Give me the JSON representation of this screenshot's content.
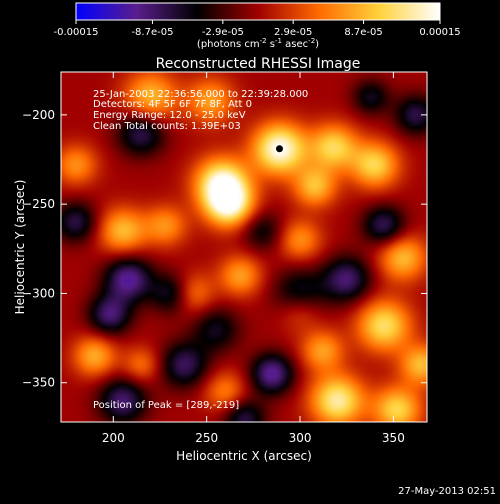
{
  "colorbar": {
    "tick_labels": [
      "-0.00015",
      "-8.7e-05",
      "-2.9e-05",
      "2.9e-05",
      "8.7e-05",
      "0.00015"
    ],
    "tick_values": [
      -0.00015,
      -8.7e-05,
      -2.9e-05,
      2.9e-05,
      8.7e-05,
      0.00015
    ],
    "units_prefix": "(photons cm",
    "units_exp1": "-2",
    "units_mid": " s",
    "units_exp2": "-1",
    "units_suffix": " asec",
    "units_exp3": "-2",
    "units_close": ")",
    "colormap": [
      "#0000ff",
      "#5a1e8c",
      "#000000",
      "#a00000",
      "#ff6a00",
      "#ffd23c",
      "#ffffff"
    ]
  },
  "chart_data": {
    "type": "heatmap",
    "title": "Reconstructed RHESSI Image",
    "xlabel": "Heliocentric X (arcsec)",
    "ylabel": "Heliocentric Y (arcsec)",
    "xlim": [
      172,
      368
    ],
    "ylim": [
      -372,
      -176
    ],
    "xticks": [
      200,
      250,
      300,
      350
    ],
    "yticks": [
      -200,
      -250,
      -300,
      -350
    ],
    "xtick_labels": [
      "200",
      "250",
      "300",
      "350"
    ],
    "ytick_labels": [
      "−200",
      "−250",
      "−300",
      "−350"
    ],
    "peak": [
      289,
      -219
    ],
    "annotations": {
      "time_range": "25-Jan-2003 22:36:56.000 to 22:39:28.000",
      "detectors": "Detectors: 4F 5F 6F 7F 8F, Att 0",
      "energy": "Energy Range: 12.0 - 25.0 keV",
      "clean": "Clean    Total counts: 1.39E+03",
      "peak_text": "Position of Peak = [289,-219]"
    },
    "sources": [
      {
        "x": 289,
        "y": -219,
        "amp": 1.0,
        "w": 10
      },
      {
        "x": 258,
        "y": -238,
        "amp": 0.9,
        "w": 10
      },
      {
        "x": 262,
        "y": -250,
        "amp": 0.9,
        "w": 9
      },
      {
        "x": 318,
        "y": -218,
        "amp": 0.7,
        "w": 9
      },
      {
        "x": 308,
        "y": -240,
        "amp": 0.6,
        "w": 8
      },
      {
        "x": 340,
        "y": -228,
        "amp": 0.7,
        "w": 9
      },
      {
        "x": 220,
        "y": -190,
        "amp": 0.6,
        "w": 10
      },
      {
        "x": 252,
        "y": -192,
        "amp": 0.5,
        "w": 9
      },
      {
        "x": 180,
        "y": -228,
        "amp": 0.45,
        "w": 8
      },
      {
        "x": 205,
        "y": -265,
        "amp": 0.6,
        "w": 9
      },
      {
        "x": 228,
        "y": -262,
        "amp": 0.45,
        "w": 8
      },
      {
        "x": 268,
        "y": -290,
        "amp": 0.5,
        "w": 8
      },
      {
        "x": 242,
        "y": -300,
        "amp": 0.45,
        "w": 8
      },
      {
        "x": 300,
        "y": -270,
        "amp": 0.45,
        "w": 8
      },
      {
        "x": 355,
        "y": -280,
        "amp": 0.6,
        "w": 9
      },
      {
        "x": 345,
        "y": -318,
        "amp": 0.75,
        "w": 10
      },
      {
        "x": 312,
        "y": -332,
        "amp": 0.5,
        "w": 8
      },
      {
        "x": 365,
        "y": -340,
        "amp": 0.6,
        "w": 8
      },
      {
        "x": 320,
        "y": -360,
        "amp": 0.85,
        "w": 10
      },
      {
        "x": 352,
        "y": -365,
        "amp": 0.7,
        "w": 9
      },
      {
        "x": 190,
        "y": -335,
        "amp": 0.55,
        "w": 8
      },
      {
        "x": 215,
        "y": -340,
        "amp": 0.35,
        "w": 7
      },
      {
        "x": 260,
        "y": -355,
        "amp": 0.4,
        "w": 8
      },
      {
        "x": 300,
        "y": -310,
        "amp": 0.3,
        "w": 8
      },
      {
        "x": 215,
        "y": -210,
        "amp": -0.55,
        "w": 9
      },
      {
        "x": 180,
        "y": -260,
        "amp": -0.5,
        "w": 8
      },
      {
        "x": 208,
        "y": -292,
        "amp": -0.7,
        "w": 9
      },
      {
        "x": 232,
        "y": -300,
        "amp": -0.5,
        "w": 8
      },
      {
        "x": 198,
        "y": -312,
        "amp": -0.6,
        "w": 8
      },
      {
        "x": 205,
        "y": -360,
        "amp": -0.6,
        "w": 9
      },
      {
        "x": 238,
        "y": -340,
        "amp": -0.55,
        "w": 9
      },
      {
        "x": 285,
        "y": -345,
        "amp": -0.7,
        "w": 8
      },
      {
        "x": 270,
        "y": -370,
        "amp": -0.5,
        "w": 8
      },
      {
        "x": 325,
        "y": -292,
        "amp": -0.6,
        "w": 9
      },
      {
        "x": 300,
        "y": -300,
        "amp": -0.45,
        "w": 10
      },
      {
        "x": 345,
        "y": -262,
        "amp": -0.55,
        "w": 8
      },
      {
        "x": 362,
        "y": -200,
        "amp": -0.5,
        "w": 8
      },
      {
        "x": 338,
        "y": -190,
        "amp": -0.4,
        "w": 7
      },
      {
        "x": 280,
        "y": -265,
        "amp": -0.35,
        "w": 8
      },
      {
        "x": 255,
        "y": -320,
        "amp": -0.4,
        "w": 9
      }
    ]
  },
  "footer": {
    "date": "27-May-2013 02:51"
  }
}
